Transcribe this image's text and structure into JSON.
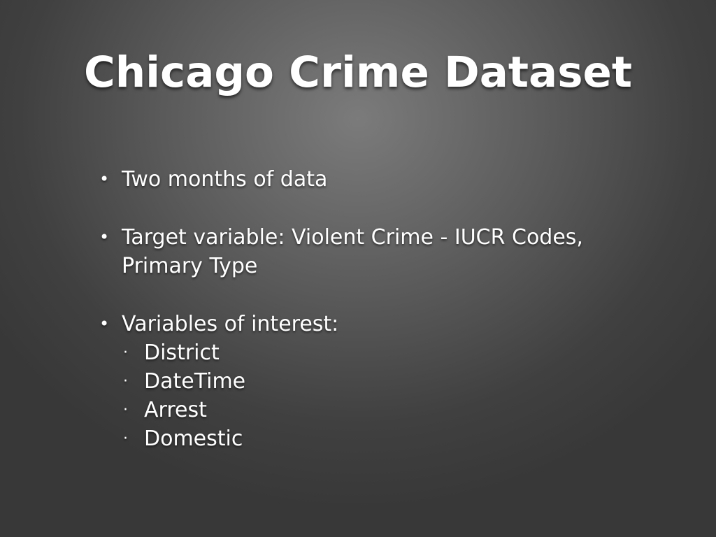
{
  "slide": {
    "title": "Chicago Crime Dataset",
    "bullets": [
      {
        "text": "Two months of data"
      },
      {
        "text": "Target variable: Violent Crime - IUCR Codes, Primary Type"
      },
      {
        "text": "Variables of interest:"
      }
    ],
    "sub_bullets": [
      "District",
      "DateTime",
      "Arrest",
      "Domestic"
    ],
    "bullet_glyph": "•",
    "sub_bullet_glyph": "·"
  }
}
